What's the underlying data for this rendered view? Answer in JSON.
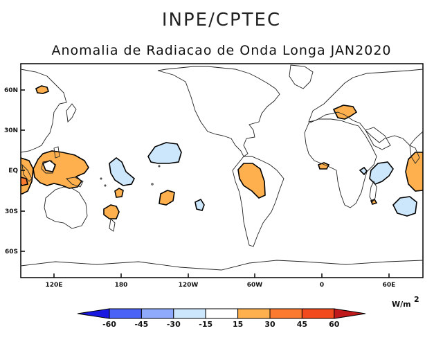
{
  "header": {
    "institution": "INPE/CPTEC",
    "title": "Anomalia de Radiacao de Onda Longa JAN2020"
  },
  "map": {
    "lat_labels": [
      "60N",
      "30N",
      "EQ",
      "30S",
      "60S"
    ],
    "lon_labels": [
      "120E",
      "180",
      "120W",
      "60W",
      "0",
      "60E"
    ],
    "colors": {
      "positive_light": "#fdb04d",
      "negative_light": "#cce6fb",
      "coast": "#222222",
      "contour": "#000000"
    }
  },
  "colorbar": {
    "unit_base": "W/m",
    "unit_exp": "2",
    "labels": [
      "-60",
      "-45",
      "-30",
      "-15",
      "15",
      "30",
      "45",
      "60"
    ],
    "colors": [
      "#1818e0",
      "#4b62f6",
      "#8fa9fb",
      "#cce6fb",
      "#ffffff",
      "#fdb04d",
      "#fc7a2f",
      "#f34a1d",
      "#c0191b"
    ]
  }
}
